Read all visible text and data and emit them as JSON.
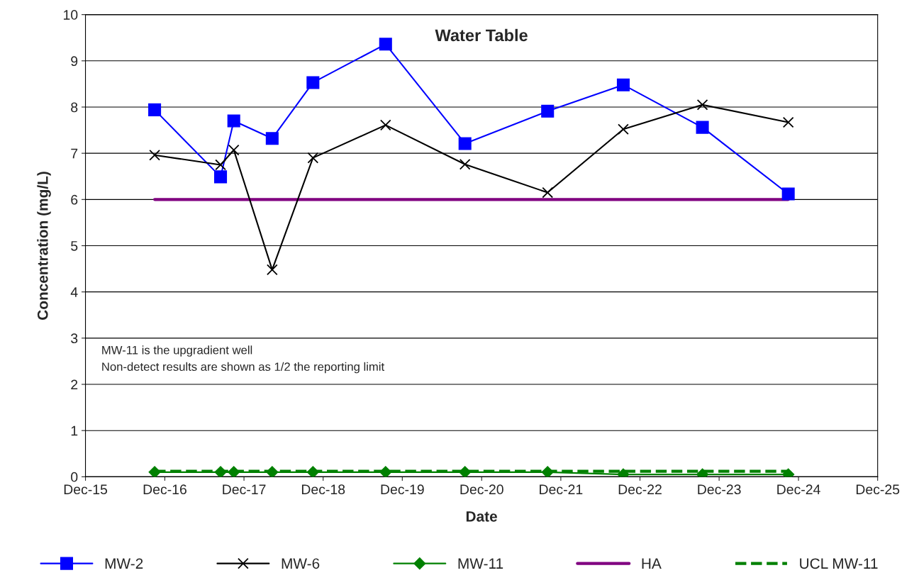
{
  "chart_data": {
    "type": "line",
    "title": "Water Table",
    "xlabel": "Date",
    "ylabel": "Concentration (mg/L)",
    "xlim": [
      "2015-12-01",
      "2025-12-01"
    ],
    "xticks": [
      {
        "value": "2015-12-01",
        "label": "Dec-15"
      },
      {
        "value": "2016-12-01",
        "label": "Dec-16"
      },
      {
        "value": "2017-12-01",
        "label": "Dec-17"
      },
      {
        "value": "2018-12-01",
        "label": "Dec-18"
      },
      {
        "value": "2019-12-01",
        "label": "Dec-19"
      },
      {
        "value": "2020-12-01",
        "label": "Dec-20"
      },
      {
        "value": "2021-12-01",
        "label": "Dec-21"
      },
      {
        "value": "2022-12-01",
        "label": "Dec-22"
      },
      {
        "value": "2023-12-01",
        "label": "Dec-23"
      },
      {
        "value": "2024-12-01",
        "label": "Dec-24"
      },
      {
        "value": "2025-12-01",
        "label": "Dec-25"
      }
    ],
    "ylim": [
      0,
      10
    ],
    "yticks": [
      0,
      1,
      2,
      3,
      4,
      5,
      6,
      7,
      8,
      9,
      10
    ],
    "grid": "y",
    "legend": "bottom",
    "line_style": "solid",
    "x": [
      "2016-10-15",
      "2017-08-15",
      "2017-10-15",
      "2018-04-10",
      "2018-10-15",
      "2019-09-15",
      "2020-09-15",
      "2021-10-01",
      "2022-09-15",
      "2023-09-15",
      "2024-10-15"
    ],
    "series": [
      {
        "name": "MW-2",
        "color": "#0000ff",
        "marker": "square",
        "values": [
          7.94,
          6.49,
          7.7,
          7.32,
          8.53,
          9.36,
          7.21,
          7.91,
          8.48,
          7.56,
          6.12
        ]
      },
      {
        "name": "MW-6",
        "color": "#000000",
        "marker": "cross",
        "values": [
          6.96,
          6.75,
          7.07,
          4.48,
          6.9,
          7.61,
          6.76,
          6.15,
          7.52,
          8.05,
          7.67
        ]
      },
      {
        "name": "MW-11",
        "color": "#008000",
        "marker": "diamond",
        "values": [
          0.1,
          0.1,
          0.1,
          0.1,
          0.1,
          0.1,
          0.1,
          0.1,
          0.05,
          0.05,
          0.05
        ]
      },
      {
        "name": "HA",
        "color": "#800080",
        "marker": "none",
        "x": [
          "2016-10-15",
          "2024-10-15"
        ],
        "values": [
          6,
          6
        ]
      },
      {
        "name": "UCL MW-11",
        "color": "#008000",
        "marker": "none",
        "line_style": "dashed",
        "x": [
          "2016-10-15",
          "2024-10-15"
        ],
        "values": [
          0.12,
          0.12
        ]
      }
    ],
    "annotations": [
      "MW-11 is the upgradient well",
      "Non-detect results are shown as 1/2 the reporting limit"
    ]
  }
}
